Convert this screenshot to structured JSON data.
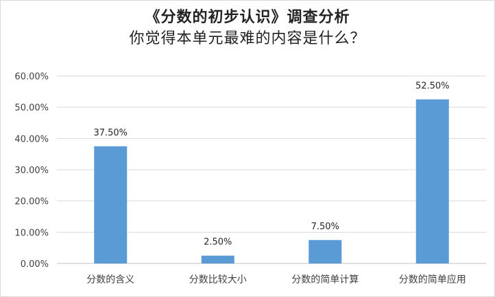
{
  "chart_data": {
    "type": "bar",
    "title": "《分数的初步认识》调查分析",
    "subtitle": "你觉得本单元最难的内容是什么？",
    "categories": [
      "分数的含义",
      "分数比较大小",
      "分数的简单计算",
      "分数的简单应用"
    ],
    "values": [
      37.5,
      2.5,
      7.5,
      52.5
    ],
    "data_labels": [
      "37.50%",
      "2.50%",
      "7.50%",
      "52.50%"
    ],
    "y_ticks": [
      "0.00%",
      "10.00%",
      "20.00%",
      "30.00%",
      "40.00%",
      "50.00%",
      "60.00%"
    ],
    "ylim": [
      0,
      60
    ],
    "grid": true,
    "legend": "none",
    "bar_color": "#5b9bd5",
    "grid_color": "#d9d9d9"
  }
}
